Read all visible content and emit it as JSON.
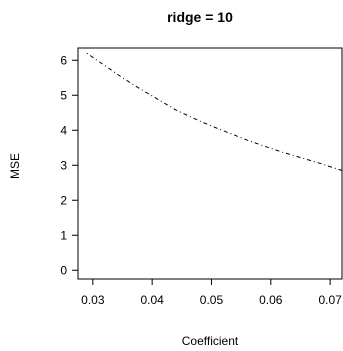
{
  "chart_data": {
    "type": "line",
    "title": "ridge = 10",
    "xlabel": "Coefficient",
    "ylabel": "MSE",
    "xlim": [
      0.0275,
      0.072
    ],
    "ylim": [
      -0.25,
      6.35
    ],
    "x_ticks": [
      0.03,
      0.04,
      0.05,
      0.06,
      0.07
    ],
    "x_tick_labels": [
      "0.03",
      "0.04",
      "0.05",
      "0.06",
      "0.07"
    ],
    "y_ticks": [
      0,
      1,
      2,
      3,
      4,
      5,
      6
    ],
    "y_tick_labels": [
      "0",
      "1",
      "2",
      "3",
      "4",
      "5",
      "6"
    ],
    "grid": false,
    "series": [
      {
        "line_style": "dotdash",
        "color": "#000000",
        "x": [
          0.029,
          0.032,
          0.035,
          0.038,
          0.041,
          0.044,
          0.047,
          0.05,
          0.053,
          0.056,
          0.059,
          0.062,
          0.065,
          0.068,
          0.072
        ],
        "y": [
          6.2,
          5.85,
          5.5,
          5.18,
          4.88,
          4.58,
          4.34,
          4.12,
          3.92,
          3.72,
          3.54,
          3.37,
          3.22,
          3.07,
          2.85
        ]
      }
    ]
  }
}
